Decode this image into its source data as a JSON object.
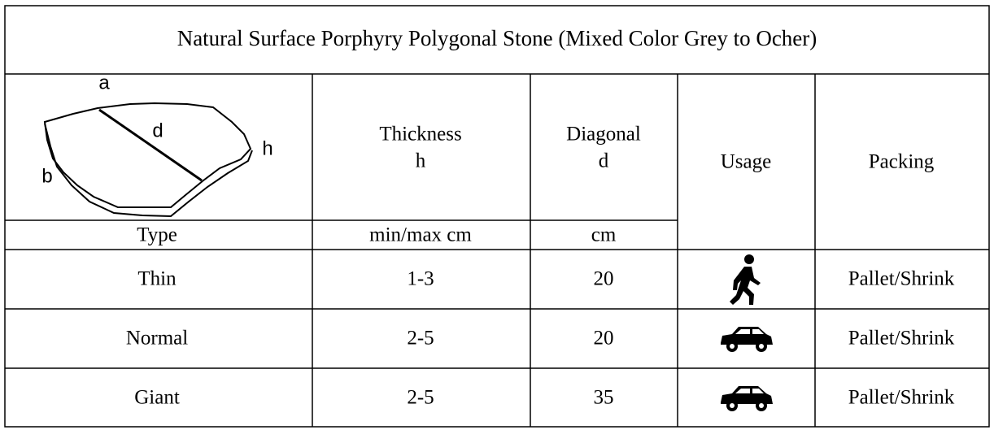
{
  "title": "Natural Surface Porphyry Polygonal Stone (Mixed Color Grey to Ocher)",
  "diagram": {
    "labels": [
      "a",
      "d",
      "h",
      "b"
    ]
  },
  "header": {
    "type": "Type",
    "thickness": "Thickness",
    "thickness_symbol": "h",
    "thickness_unit": "min/max cm",
    "diagonal": "Diagonal",
    "diagonal_symbol": "d",
    "diagonal_unit": "cm",
    "usage": "Usage",
    "packing": "Packing"
  },
  "table": {
    "rows": [
      [
        "Thin",
        "1-3",
        "20",
        "Pallet/Shrink"
      ],
      [
        "Normal",
        "2-5",
        "20",
        "Pallet/Shrink"
      ],
      [
        "Giant",
        "2-5",
        "35",
        "Pallet/Shrink"
      ]
    ]
  }
}
